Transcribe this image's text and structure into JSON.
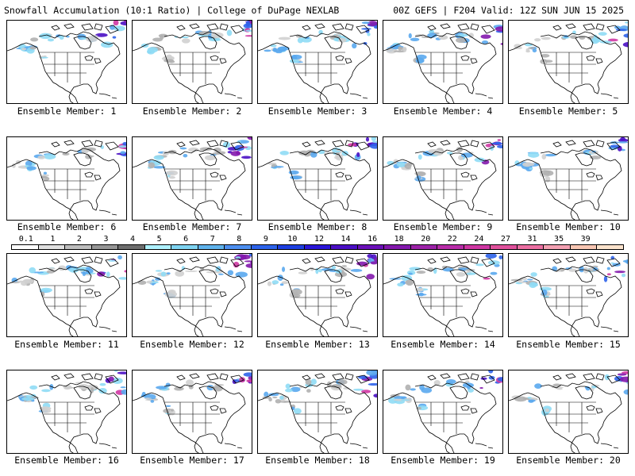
{
  "header": {
    "left_title": "Snowfall Accumulation (10:1 Ratio) | College of DuPage NEXLAB",
    "right_title": "00Z GEFS | F204 Valid: 12Z SUN JUN 15 2025"
  },
  "panels": [
    {
      "label": "Ensemble Member: 1"
    },
    {
      "label": "Ensemble Member: 2"
    },
    {
      "label": "Ensemble Member: 3"
    },
    {
      "label": "Ensemble Member: 4"
    },
    {
      "label": "Ensemble Member: 5"
    },
    {
      "label": "Ensemble Member: 6"
    },
    {
      "label": "Ensemble Member: 7"
    },
    {
      "label": "Ensemble Member: 8"
    },
    {
      "label": "Ensemble Member: 9"
    },
    {
      "label": "Ensemble Member: 10"
    },
    {
      "label": "Ensemble Member: 11"
    },
    {
      "label": "Ensemble Member: 12"
    },
    {
      "label": "Ensemble Member: 13"
    },
    {
      "label": "Ensemble Member: 14"
    },
    {
      "label": "Ensemble Member: 15"
    },
    {
      "label": "Ensemble Member: 16"
    },
    {
      "label": "Ensemble Member: 17"
    },
    {
      "label": "Ensemble Member: 18"
    },
    {
      "label": "Ensemble Member: 19"
    },
    {
      "label": "Ensemble Member: 20"
    }
  ],
  "colorbar": {
    "labels": [
      "0.1",
      "1",
      "2",
      "3",
      "4",
      "5",
      "6",
      "7",
      "8",
      "9",
      "10",
      "12",
      "14",
      "16",
      "18",
      "20",
      "22",
      "24",
      "27",
      "31",
      "35",
      "39"
    ],
    "colors": [
      "#ffffff",
      "#e0e0e0",
      "#bdbdbd",
      "#969696",
      "#6e6e6e",
      "#aff2ff",
      "#7fd4f2",
      "#5fb3ec",
      "#4d8ff0",
      "#2d63ea",
      "#1d3fe0",
      "#2a16d8",
      "#4a0fc4",
      "#6a10b8",
      "#8318ad",
      "#9c22a8",
      "#b82ca8",
      "#cf37a3",
      "#e0519c",
      "#ec6fa2",
      "#f3a0b2",
      "#f8c6b3",
      "#fbe3cc"
    ]
  },
  "map": {
    "land_color": "#ffffff",
    "border_color": "#000000",
    "snow_colors": [
      "#d0d0d0",
      "#b0b0b0",
      "#8fdcf5",
      "#5aa9ee",
      "#2d63ea",
      "#4a0fc4",
      "#8318ad",
      "#cf37a3"
    ]
  }
}
